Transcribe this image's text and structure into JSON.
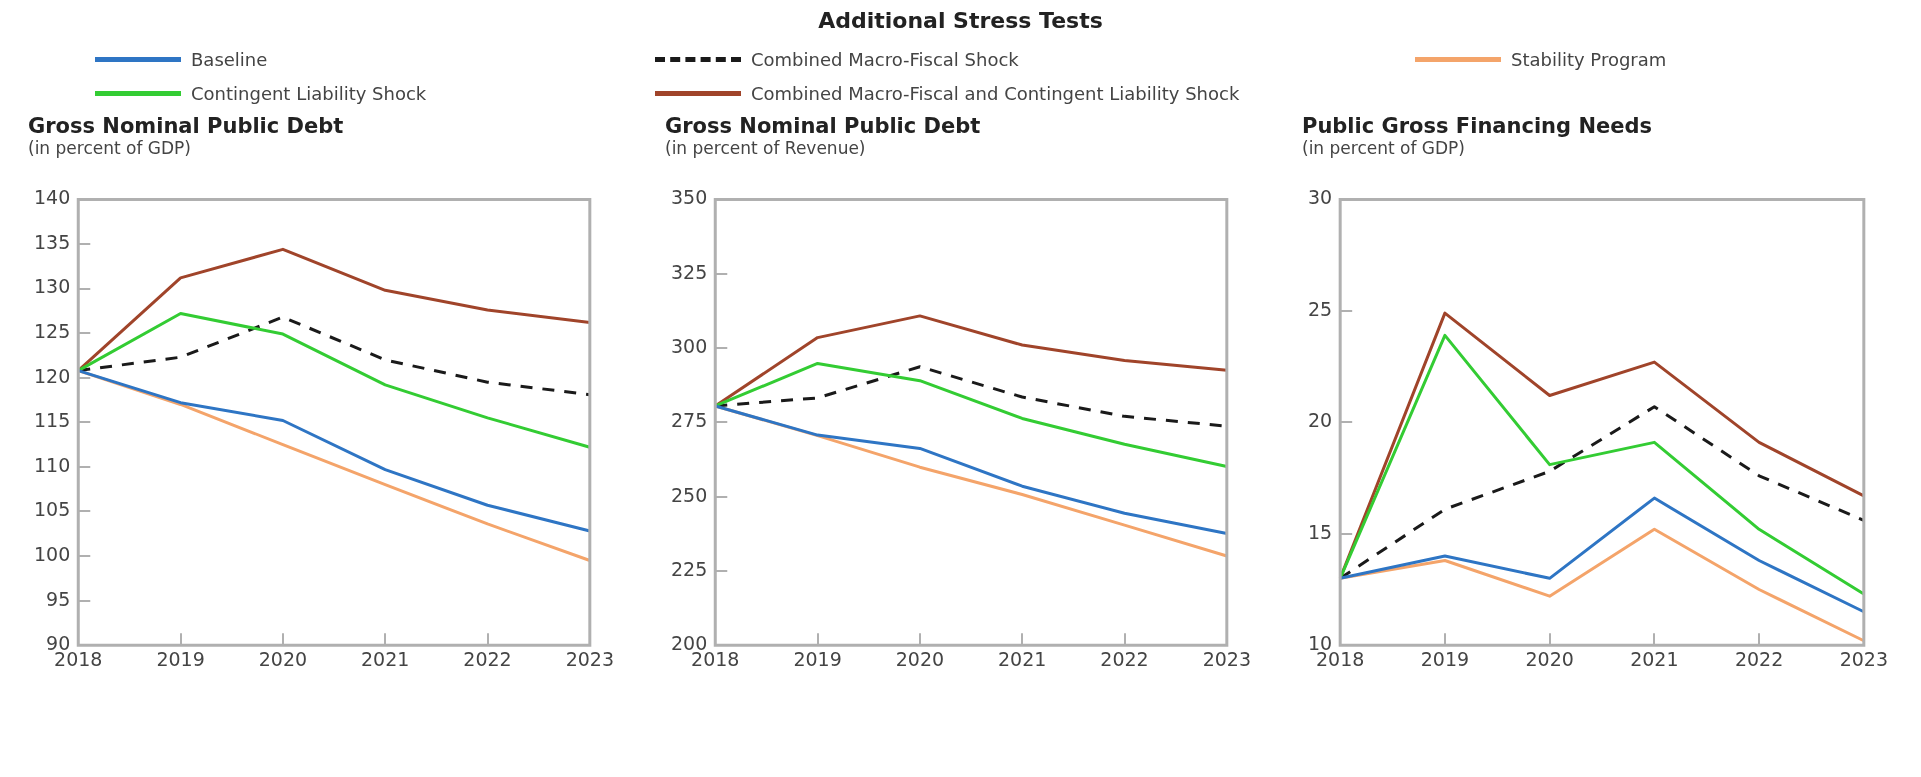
{
  "chart_data": [
    {
      "type": "line",
      "title": "Gross Nominal Public Debt",
      "subtitle": "(in percent of GDP)",
      "annotations": [
        "Additional Stress Tests"
      ],
      "legend": "top",
      "grid": false,
      "marker": "none",
      "categories": [
        "2018",
        "2019",
        "2020",
        "2021",
        "2022",
        "2023"
      ],
      "ylim": [
        90,
        140
      ],
      "yticks": [
        90,
        95,
        100,
        105,
        110,
        115,
        120,
        125,
        130,
        135,
        140
      ],
      "series": [
        {
          "name": "Baseline",
          "color": "#2e75c4",
          "values": [
            120.8,
            117.2,
            115.2,
            109.7,
            105.7,
            102.8
          ]
        },
        {
          "name": "Contingent Liability Shock",
          "color": "#33cc33",
          "values": [
            120.8,
            127.2,
            124.9,
            119.2,
            115.5,
            112.2
          ]
        },
        {
          "name": "Combined Macro-Fiscal Shock",
          "color": "#1a1a1a",
          "line_style": "dashed",
          "values": [
            120.8,
            122.3,
            126.8,
            122.0,
            119.5,
            118.1
          ]
        },
        {
          "name": "Combined Macro-Fiscal and Contingent Liability Shock",
          "color": "#a0442a",
          "values": [
            120.8,
            131.2,
            134.4,
            129.8,
            127.6,
            126.2
          ]
        },
        {
          "name": "Stability Program",
          "color": "#f4a46a",
          "values": [
            120.8,
            117.0,
            112.5,
            108.0,
            103.6,
            99.5
          ]
        }
      ]
    },
    {
      "type": "line",
      "title": "Gross Nominal Public Debt",
      "subtitle": "(in percent of Revenue)",
      "legend": false,
      "grid": false,
      "marker": "none",
      "categories": [
        "2018",
        "2019",
        "2020",
        "2021",
        "2022",
        "2023"
      ],
      "ylim": [
        200,
        350
      ],
      "yticks": [
        200,
        225,
        250,
        275,
        300,
        325,
        350
      ],
      "series": [
        {
          "color": "#2e75c4",
          "values": [
            280.5,
            270.7,
            266.2,
            253.5,
            244.4,
            237.6
          ]
        },
        {
          "color": "#33cc33",
          "values": [
            280.5,
            294.8,
            289.0,
            276.3,
            267.6,
            260.1
          ]
        },
        {
          "color": "#1a1a1a",
          "line_style": "dashed",
          "values": [
            280.5,
            283.2,
            293.7,
            283.5,
            277.0,
            273.7
          ]
        },
        {
          "color": "#a0442a",
          "values": [
            280.5,
            303.5,
            310.8,
            301.0,
            295.8,
            292.5
          ]
        },
        {
          "color": "#f4a46a",
          "values": [
            280.5,
            270.5,
            259.9,
            250.7,
            240.4,
            230.0
          ]
        }
      ]
    },
    {
      "type": "line",
      "title": "Public Gross Financing Needs",
      "subtitle": "(in percent of GDP)",
      "legend": false,
      "grid": false,
      "marker": "none",
      "categories": [
        "2018",
        "2019",
        "2020",
        "2021",
        "2022",
        "2023"
      ],
      "ylim": [
        10,
        30
      ],
      "yticks": [
        10,
        15,
        20,
        25,
        30
      ],
      "series": [
        {
          "color": "#2e75c4",
          "values": [
            13.0,
            14.0,
            13.0,
            16.6,
            13.8,
            11.5
          ]
        },
        {
          "color": "#33cc33",
          "values": [
            13.0,
            23.9,
            18.1,
            19.1,
            15.2,
            12.3
          ]
        },
        {
          "color": "#1a1a1a",
          "line_style": "dashed",
          "values": [
            13.0,
            16.1,
            17.8,
            20.7,
            17.6,
            15.6
          ]
        },
        {
          "color": "#a0442a",
          "values": [
            13.0,
            24.9,
            21.2,
            22.7,
            19.1,
            16.7
          ]
        },
        {
          "color": "#f4a46a",
          "values": [
            13.0,
            13.8,
            12.2,
            15.2,
            12.5,
            10.2
          ]
        }
      ]
    }
  ]
}
